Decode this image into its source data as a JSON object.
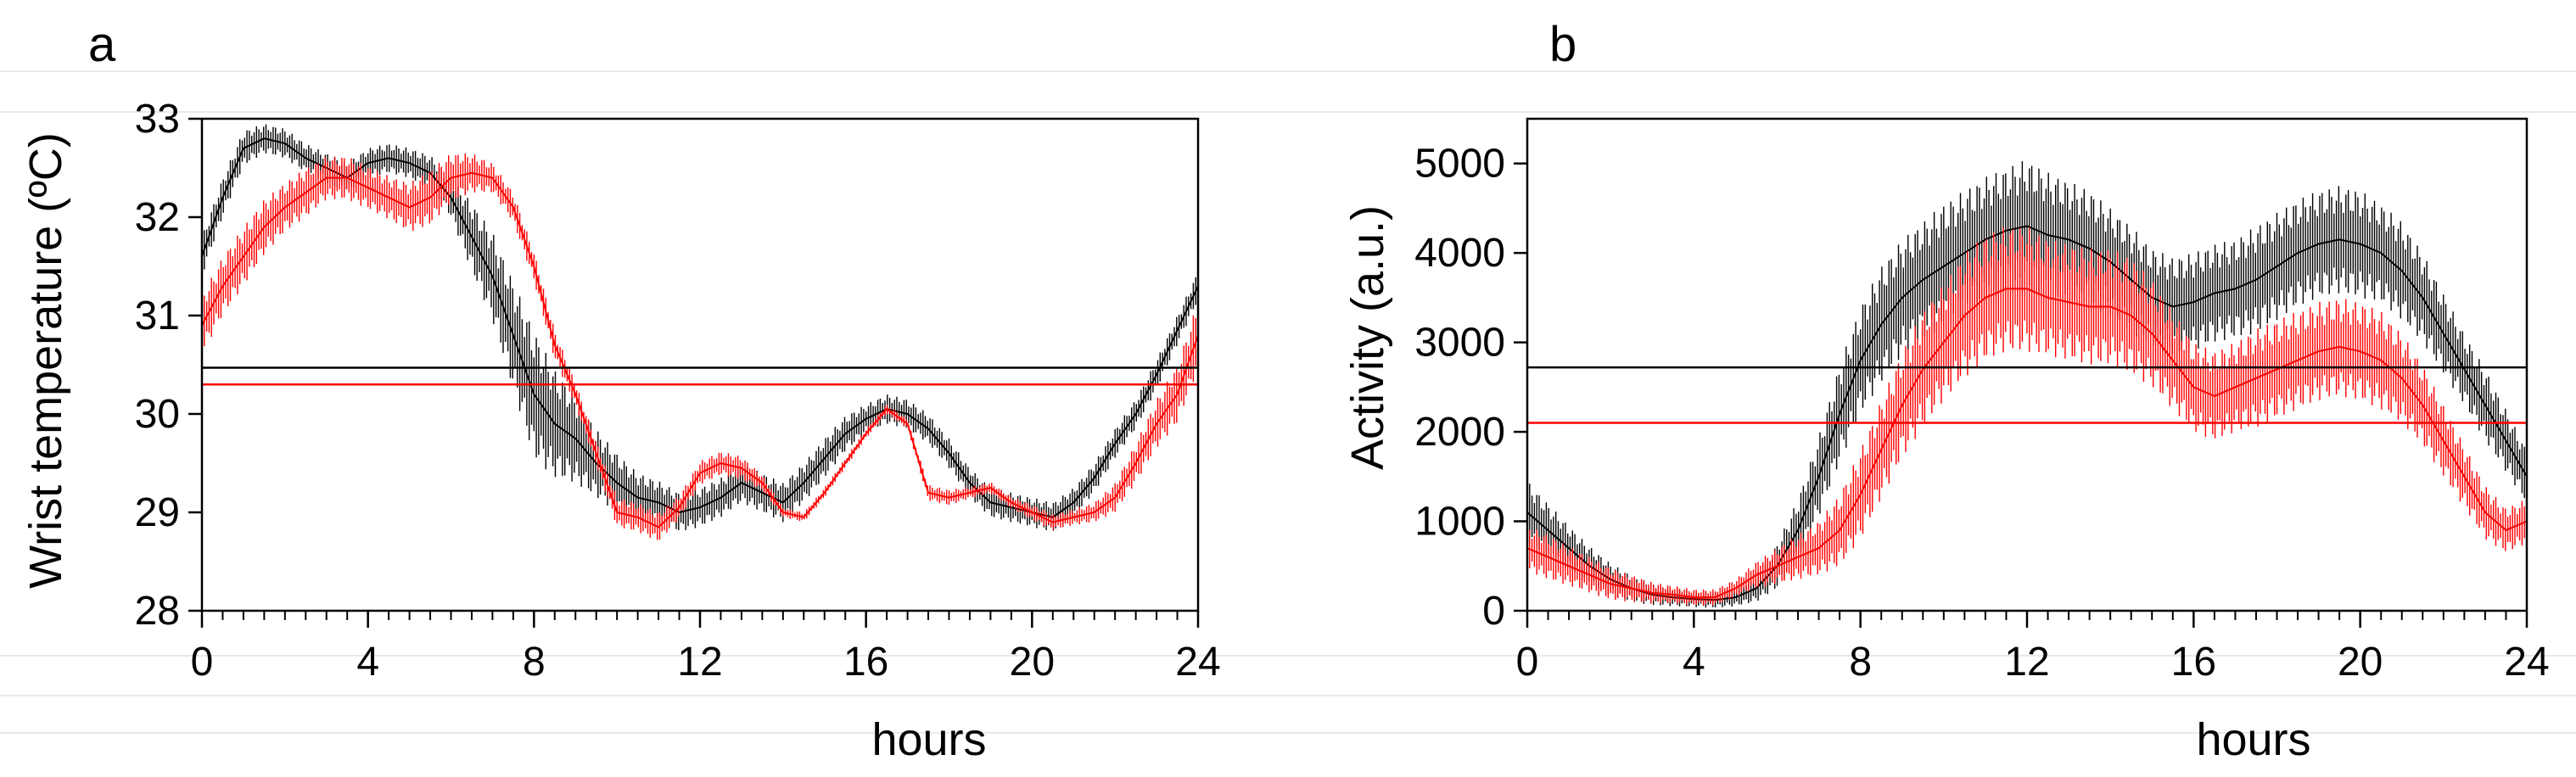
{
  "chart_data": [
    {
      "type": "line",
      "panel_label": "a",
      "xlabel": "hours",
      "ylabel": "Wrist temperature (ºC)",
      "xlim": [
        0,
        24
      ],
      "ylim": [
        28,
        33
      ],
      "xticks": [
        0,
        4,
        8,
        12,
        16,
        20,
        24
      ],
      "yticks": [
        28,
        29,
        30,
        31,
        32,
        33
      ],
      "series": [
        {
          "name": "black",
          "color": "#000000",
          "mean_line": 30.47,
          "x": [
            0,
            0.5,
            1,
            1.5,
            2,
            2.5,
            3,
            3.5,
            4,
            4.5,
            5,
            5.5,
            6,
            6.5,
            7,
            7.5,
            8,
            8.5,
            9,
            9.5,
            10,
            10.5,
            11,
            11.5,
            12,
            12.5,
            13,
            13.5,
            14,
            14.5,
            15,
            15.5,
            16,
            16.5,
            17,
            17.5,
            18,
            18.5,
            19,
            19.5,
            20,
            20.5,
            21,
            21.5,
            22,
            22.5,
            23,
            23.5,
            24
          ],
          "y": [
            31.6,
            32.2,
            32.7,
            32.8,
            32.75,
            32.6,
            32.5,
            32.4,
            32.55,
            32.6,
            32.55,
            32.45,
            32.2,
            31.8,
            31.4,
            30.8,
            30.2,
            29.9,
            29.75,
            29.5,
            29.3,
            29.15,
            29.1,
            29.0,
            29.05,
            29.15,
            29.3,
            29.2,
            29.1,
            29.3,
            29.55,
            29.8,
            29.95,
            30.05,
            30.0,
            29.85,
            29.6,
            29.3,
            29.1,
            29.05,
            29.0,
            28.95,
            29.1,
            29.35,
            29.7,
            30.0,
            30.4,
            30.85,
            31.3
          ],
          "amp": [
            0.2,
            0.2,
            0.18,
            0.15,
            0.15,
            0.15,
            0.15,
            0.15,
            0.15,
            0.15,
            0.15,
            0.18,
            0.2,
            0.35,
            0.45,
            0.55,
            0.65,
            0.55,
            0.45,
            0.35,
            0.3,
            0.25,
            0.22,
            0.2,
            0.2,
            0.2,
            0.2,
            0.2,
            0.2,
            0.2,
            0.2,
            0.18,
            0.15,
            0.15,
            0.15,
            0.15,
            0.15,
            0.15,
            0.15,
            0.15,
            0.15,
            0.15,
            0.15,
            0.15,
            0.15,
            0.15,
            0.15,
            0.15,
            0.15
          ]
        },
        {
          "name": "red",
          "color": "#ff0000",
          "mean_line": 30.3,
          "x": [
            0,
            0.5,
            1,
            1.5,
            2,
            2.5,
            3,
            3.5,
            4,
            4.5,
            5,
            5.5,
            6,
            6.5,
            7,
            7.5,
            8,
            8.5,
            9,
            9.5,
            10,
            10.5,
            11,
            11.5,
            12,
            12.5,
            13,
            13.5,
            14,
            14.5,
            15,
            15.5,
            16,
            16.5,
            17,
            17.5,
            18,
            18.5,
            19,
            19.5,
            20,
            20.5,
            21,
            21.5,
            22,
            22.5,
            23,
            23.5,
            24
          ],
          "y": [
            30.9,
            31.3,
            31.6,
            31.9,
            32.1,
            32.25,
            32.4,
            32.4,
            32.3,
            32.2,
            32.1,
            32.2,
            32.4,
            32.45,
            32.4,
            32.1,
            31.5,
            30.7,
            30.2,
            29.6,
            29.0,
            28.95,
            28.85,
            29.05,
            29.4,
            29.5,
            29.45,
            29.3,
            29.0,
            28.95,
            29.2,
            29.5,
            29.8,
            30.05,
            29.9,
            29.2,
            29.15,
            29.2,
            29.25,
            29.1,
            29.0,
            28.9,
            28.95,
            29.0,
            29.15,
            29.5,
            29.9,
            30.2,
            30.8
          ],
          "amp": [
            0.3,
            0.3,
            0.3,
            0.28,
            0.25,
            0.25,
            0.22,
            0.22,
            0.22,
            0.22,
            0.25,
            0.28,
            0.25,
            0.2,
            0.15,
            0.15,
            0.15,
            0.15,
            0.12,
            0.12,
            0.15,
            0.15,
            0.15,
            0.12,
            0.12,
            0.12,
            0.12,
            0.08,
            0.05,
            0.05,
            0.05,
            0.05,
            0.05,
            0.05,
            0.05,
            0.08,
            0.08,
            0.06,
            0.06,
            0.06,
            0.08,
            0.08,
            0.08,
            0.1,
            0.15,
            0.2,
            0.25,
            0.3,
            0.35
          ]
        }
      ]
    },
    {
      "type": "line",
      "panel_label": "b",
      "xlabel": "hours",
      "ylabel": "Activity (a.u.)",
      "xlim": [
        0,
        24
      ],
      "ylim": [
        0,
        5500
      ],
      "xticks": [
        0,
        4,
        8,
        12,
        16,
        20,
        24
      ],
      "yticks": [
        0,
        1000,
        2000,
        3000,
        4000,
        5000
      ],
      "series": [
        {
          "name": "black",
          "color": "#000000",
          "mean_line": 2720,
          "x": [
            0,
            0.5,
            1,
            1.5,
            2,
            2.5,
            3,
            3.5,
            4,
            4.5,
            5,
            5.5,
            6,
            6.5,
            7,
            7.5,
            8,
            8.5,
            9,
            9.5,
            10,
            10.5,
            11,
            11.5,
            12,
            12.5,
            13,
            13.5,
            14,
            14.5,
            15,
            15.5,
            16,
            16.5,
            17,
            17.5,
            18,
            18.5,
            19,
            19.5,
            20,
            20.5,
            21,
            21.5,
            22,
            22.5,
            23,
            23.5,
            24
          ],
          "y": [
            1100,
            900,
            700,
            500,
            350,
            250,
            180,
            150,
            130,
            120,
            150,
            250,
            500,
            900,
            1500,
            2200,
            2800,
            3200,
            3500,
            3700,
            3850,
            4000,
            4150,
            4250,
            4300,
            4200,
            4150,
            4050,
            3900,
            3700,
            3500,
            3400,
            3450,
            3550,
            3600,
            3700,
            3850,
            4000,
            4100,
            4150,
            4100,
            4000,
            3800,
            3500,
            3100,
            2700,
            2300,
            1900,
            1500
          ],
          "amp": [
            350,
            300,
            250,
            220,
            180,
            150,
            120,
            100,
            90,
            90,
            100,
            150,
            250,
            350,
            450,
            550,
            600,
            650,
            650,
            650,
            700,
            700,
            700,
            700,
            750,
            700,
            650,
            650,
            600,
            600,
            550,
            550,
            550,
            550,
            550,
            600,
            600,
            600,
            600,
            600,
            600,
            550,
            550,
            500,
            450,
            400,
            400,
            350,
            300
          ]
        },
        {
          "name": "red",
          "color": "#ff0000",
          "mean_line": 2100,
          "x": [
            0,
            0.5,
            1,
            1.5,
            2,
            2.5,
            3,
            3.5,
            4,
            4.5,
            5,
            5.5,
            6,
            6.5,
            7,
            7.5,
            8,
            8.5,
            9,
            9.5,
            10,
            10.5,
            11,
            11.5,
            12,
            12.5,
            13,
            13.5,
            14,
            14.5,
            15,
            15.5,
            16,
            16.5,
            17,
            17.5,
            18,
            18.5,
            19,
            19.5,
            20,
            20.5,
            21,
            21.5,
            22,
            22.5,
            23,
            23.5,
            24
          ],
          "y": [
            700,
            600,
            500,
            400,
            300,
            250,
            200,
            180,
            150,
            150,
            250,
            400,
            500,
            600,
            700,
            900,
            1300,
            1800,
            2300,
            2700,
            3000,
            3300,
            3500,
            3600,
            3600,
            3500,
            3450,
            3400,
            3400,
            3300,
            3100,
            2800,
            2500,
            2400,
            2500,
            2600,
            2700,
            2800,
            2900,
            2950,
            2900,
            2800,
            2600,
            2300,
            1900,
            1500,
            1100,
            900,
            1000
          ],
          "amp": [
            250,
            250,
            220,
            200,
            180,
            150,
            120,
            100,
            90,
            90,
            100,
            150,
            200,
            250,
            300,
            400,
            500,
            550,
            600,
            650,
            650,
            700,
            700,
            700,
            700,
            650,
            650,
            650,
            650,
            650,
            600,
            550,
            500,
            500,
            500,
            550,
            550,
            550,
            550,
            550,
            550,
            550,
            500,
            450,
            400,
            350,
            300,
            250,
            250
          ]
        }
      ]
    }
  ]
}
